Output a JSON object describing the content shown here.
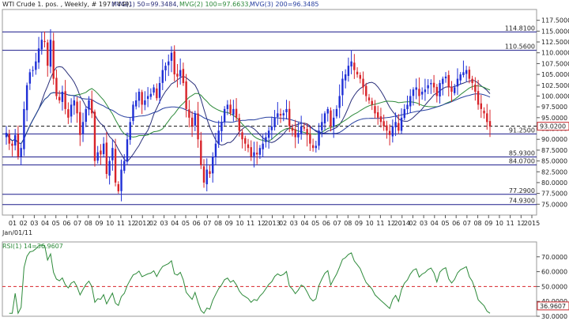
{
  "header": {
    "instrument": "WTI Crude 1. pos. , Weekly, # 197 / 449,",
    "mvg1": "MVG(1) 50=99.3484,",
    "mvg2": "MVG(2) 100=97.6633,",
    "mvg3": "MVG(3) 200=96.3485"
  },
  "rsi_header": "RSI(1) 14=36.9607",
  "colors": {
    "up": "#1f2fd6",
    "down": "#d8242a",
    "mvg1": "#2a2f7a",
    "mvg2": "#2d8a3a",
    "mvg3": "#2840a0",
    "hline": "#1c1c8c",
    "rsi": "#2d8a3a",
    "rsi_ref": "#d8242a",
    "label_box": "#c8242a"
  },
  "chart_data": [
    {
      "type": "candlestick",
      "ylim": [
        72.5,
        120
      ],
      "y_ticks": [
        "117.5000",
        "115.0000",
        "112.5000",
        "110.0000",
        "107.5000",
        "105.0000",
        "102.5000",
        "100.0000",
        "97.5000",
        "95.0000",
        "92.5000",
        "90.0000",
        "87.5000",
        "85.0000",
        "82.5000",
        "80.0000",
        "77.5000",
        "75.0000"
      ],
      "month_ticks": [
        "01",
        "02",
        "03",
        "04",
        "05",
        "06",
        "07",
        "08",
        "09",
        "10",
        "11",
        "12",
        "2012",
        "02",
        "03",
        "04",
        "05",
        "06",
        "07",
        "08",
        "09",
        "10",
        "11",
        "12",
        "2013",
        "02",
        "03",
        "04",
        "05",
        "06",
        "07",
        "08",
        "09",
        "10",
        "11",
        "12",
        "2014",
        "02",
        "03",
        "04",
        "05",
        "06",
        "07",
        "08",
        "09",
        "10",
        "11",
        "12",
        "2015"
      ],
      "start_label": "Jan/01/11",
      "horizontal_lines": [
        {
          "value": 114.81,
          "label": "114.8100"
        },
        {
          "value": 110.56,
          "label": "110.5600"
        },
        {
          "value": 91.25,
          "label": "91.2500"
        },
        {
          "value": 85.93,
          "label": "85.9300"
        },
        {
          "value": 84.07,
          "label": "84.0700"
        },
        {
          "value": 77.29,
          "label": "77.2900"
        },
        {
          "value": 74.93,
          "label": "74.9300"
        }
      ],
      "current_price": {
        "value": 93.02,
        "label": "93.0200"
      },
      "close_series": [
        91.5,
        89.0,
        88.5,
        91.0,
        86.0,
        88.0,
        97.0,
        102.5,
        105.5,
        106.0,
        108.0,
        111.0,
        113.0,
        112.5,
        107.0,
        113.0,
        104.0,
        100.0,
        99.0,
        101.0,
        97.0,
        95.0,
        98.0,
        99.0,
        96.0,
        91.0,
        94.0,
        97.0,
        99.0,
        96.0,
        85.0,
        87.0,
        86.5,
        89.0,
        82.0,
        85.0,
        88.0,
        80.0,
        78.0,
        83.0,
        85.0,
        90.0,
        94.0,
        98.0,
        99.0,
        101.0,
        98.0,
        99.0,
        100.0,
        100.5,
        102.0,
        99.5,
        103.0,
        106.0,
        107.0,
        108.0,
        110.0,
        105.0,
        104.5,
        106.0,
        103.0,
        97.0,
        95.0,
        93.0,
        96.0,
        90.0,
        84.0,
        80.0,
        83.0,
        82.0,
        86.0,
        89.0,
        92.0,
        94.0,
        97.0,
        98.0,
        96.0,
        97.0,
        95.0,
        92.0,
        90.0,
        89.0,
        88.0,
        86.0,
        87.0,
        86.5,
        88.0,
        89.0,
        90.5,
        92.0,
        93.0,
        95.0,
        96.0,
        95.5,
        96.0,
        97.0,
        93.0,
        92.0,
        90.5,
        91.5,
        93.0,
        92.5,
        91.0,
        89.0,
        88.0,
        88.5,
        92.0,
        94.0,
        96.0,
        97.0,
        93.0,
        95.0,
        97.0,
        100.0,
        104.0,
        105.0,
        107.0,
        108.0,
        106.0,
        105.0,
        104.0,
        102.0,
        100.0,
        99.0,
        98.0,
        96.0,
        95.0,
        94.0,
        93.0,
        92.0,
        91.0,
        93.0,
        94.0,
        92.0,
        95.0,
        97.0,
        98.0,
        100.0,
        101.5,
        102.0,
        100.0,
        101.0,
        101.5,
        102.5,
        103.0,
        102.0,
        100.0,
        103.0,
        104.0,
        104.5,
        102.0,
        101.0,
        102.0,
        104.0,
        105.0,
        105.5,
        106.0,
        104.0,
        103.0,
        101.0,
        98.0,
        97.0,
        96.0,
        94.0,
        93.0
      ]
    },
    {
      "type": "line",
      "series": [
        {
          "name": "RSI(1) 14",
          "values": []
        }
      ],
      "ylim": [
        30,
        80
      ],
      "y_ticks": [
        "70.0000",
        "60.0000",
        "50.0000",
        "40.0000",
        "30.0000"
      ],
      "reference": 50,
      "current": {
        "value": 36.9607,
        "label": "36.9607"
      }
    }
  ]
}
